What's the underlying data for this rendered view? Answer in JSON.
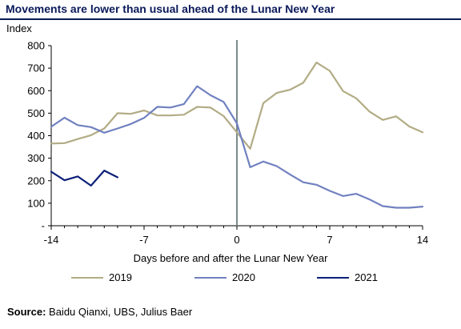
{
  "header": {
    "title": "Movements are lower than usual ahead of the Lunar New Year",
    "y_unit": "Index"
  },
  "footer": {
    "source_label": "Source:",
    "source_text": "Baidu Qianxi, UBS, Julius Baer"
  },
  "colors": {
    "title": "#0a1a5a",
    "s2019": "#b2ac85",
    "s2020": "#7181c0",
    "s2021": "#0d1f78",
    "axis": "#000000",
    "event_line": "#7a8a8a"
  },
  "chart_data": {
    "type": "line",
    "title": "Movements are lower than usual ahead of the Lunar New Year",
    "xlabel": "Days before and after the Lunar New Year",
    "ylabel": "Index",
    "xlim": [
      -14,
      14
    ],
    "ylim": [
      0,
      800
    ],
    "xticks": [
      -14,
      -7,
      0,
      7,
      14
    ],
    "yticks": [
      0,
      100,
      200,
      300,
      400,
      500,
      600,
      700,
      800
    ],
    "ytick_labels": [
      "-",
      "100",
      "200",
      "300",
      "400",
      "500",
      "600",
      "700",
      "800"
    ],
    "grid": false,
    "legend_position": "bottom",
    "event_line_x": 0,
    "series": [
      {
        "name": "2019",
        "color": "#b2ac85",
        "x": [
          -14,
          -13,
          -12,
          -11,
          -10,
          -9,
          -8,
          -7,
          -6,
          -5,
          -4,
          -3,
          -2,
          -1,
          0,
          1,
          2,
          3,
          4,
          5,
          6,
          7,
          8,
          9,
          10,
          11,
          12,
          13,
          14
        ],
        "y": [
          365,
          367,
          385,
          402,
          432,
          500,
          497,
          512,
          490,
          490,
          493,
          528,
          525,
          487,
          415,
          342,
          545,
          590,
          604,
          635,
          725,
          688,
          598,
          566,
          507,
          470,
          486,
          441,
          415
        ]
      },
      {
        "name": "2020",
        "color": "#7181c0",
        "x": [
          -14,
          -13,
          -12,
          -11,
          -10,
          -9,
          -8,
          -7,
          -6,
          -5,
          -4,
          -3,
          -2,
          -1,
          0,
          1,
          2,
          3,
          4,
          5,
          6,
          7,
          8,
          9,
          10,
          11,
          12,
          13,
          14
        ],
        "y": [
          440,
          480,
          447,
          438,
          413,
          432,
          452,
          479,
          528,
          525,
          540,
          620,
          580,
          550,
          455,
          260,
          285,
          265,
          228,
          193,
          182,
          155,
          132,
          142,
          117,
          87,
          80,
          80,
          85
        ]
      },
      {
        "name": "2021",
        "color": "#0d1f78",
        "x": [
          -14,
          -13,
          -12,
          -11,
          -10,
          -9
        ],
        "y": [
          240,
          202,
          219,
          178,
          245,
          215
        ]
      }
    ]
  }
}
